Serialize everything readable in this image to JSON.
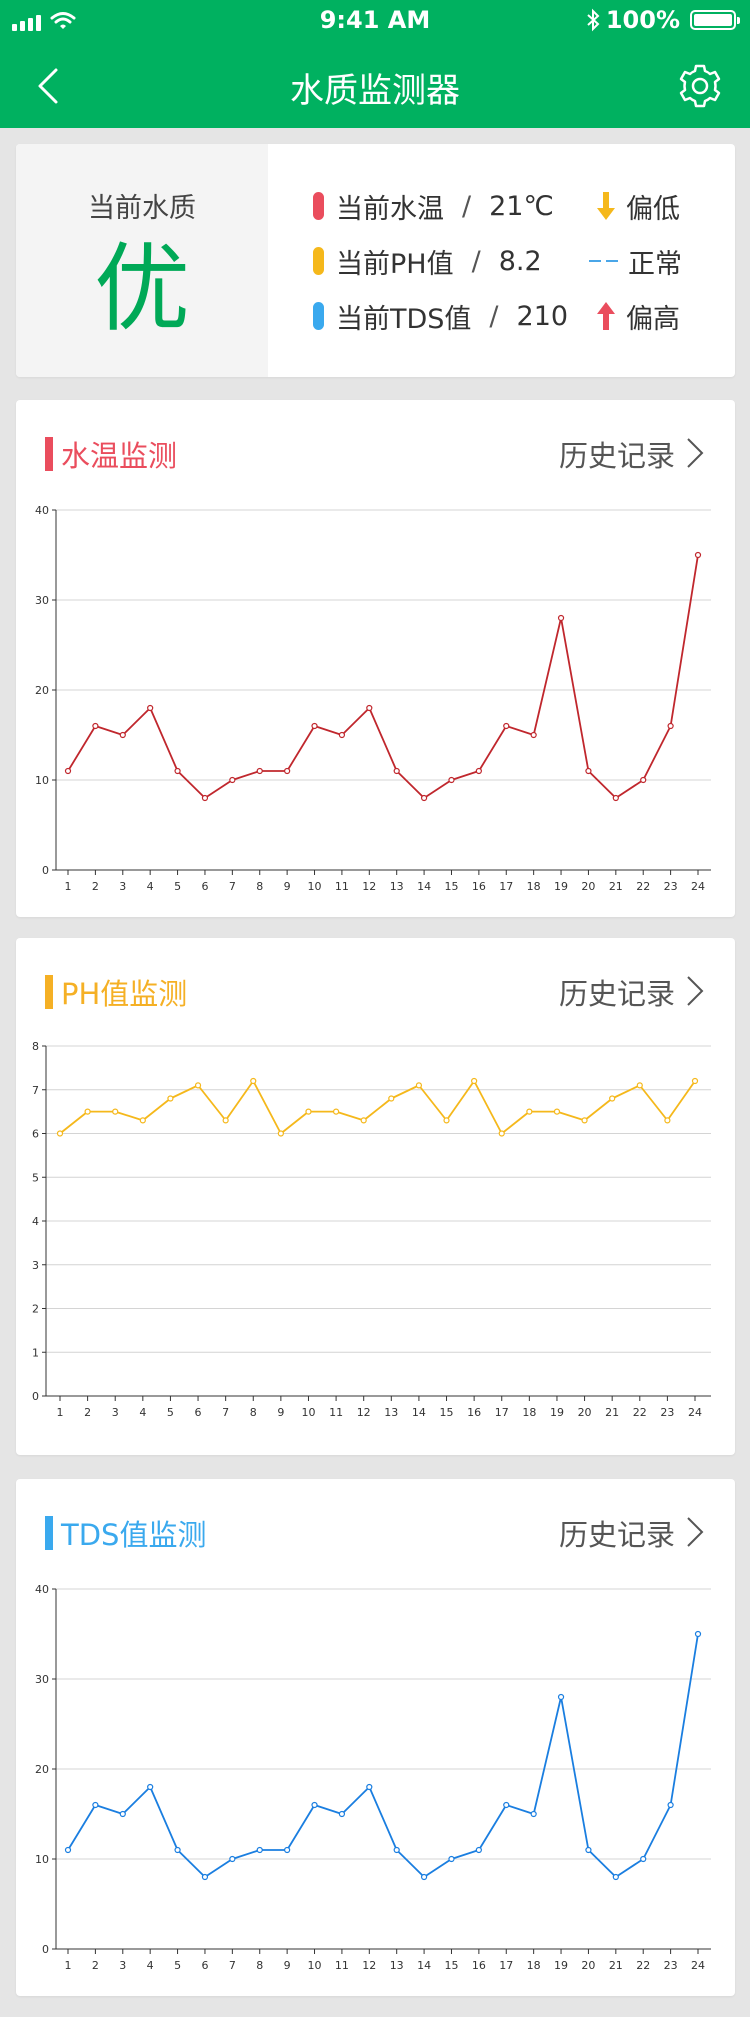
{
  "status_bar": {
    "time": "9:41 AM",
    "battery": "100%",
    "battery_level": 1.0
  },
  "header": {
    "title": "水质监测器"
  },
  "summary": {
    "label": "当前水质",
    "grade": "优",
    "metrics": [
      {
        "label": "当前水温",
        "sep": "/",
        "value": "21℃",
        "color": "#ea4d5d"
      },
      {
        "label": "当前PH值",
        "sep": "/",
        "value": "8.2",
        "color": "#f5b81b"
      },
      {
        "label": "当前TDS值",
        "sep": "/",
        "value": "210",
        "color": "#3aa9ee"
      }
    ],
    "legend": [
      {
        "label": "偏低",
        "color": "#f5b81b"
      },
      {
        "label": "正常",
        "color": "#4aa6e8"
      },
      {
        "label": "偏高",
        "color": "#ea4d5d"
      }
    ]
  },
  "sections": [
    {
      "title": "水温监测",
      "history_label": "历史记录",
      "color": "#ea4d5d"
    },
    {
      "title": "PH值监测",
      "history_label": "历史记录",
      "color": "#f5b025"
    },
    {
      "title": "TDS值监测",
      "history_label": "历史记录",
      "color": "#3aa9ee"
    }
  ],
  "chart_data": [
    {
      "type": "line",
      "x": [
        1,
        2,
        3,
        4,
        5,
        6,
        7,
        8,
        9,
        10,
        11,
        12,
        13,
        14,
        15,
        16,
        17,
        18,
        19,
        20,
        21,
        22,
        23,
        24
      ],
      "series": [
        {
          "values": [
            11,
            16,
            15,
            18,
            11,
            8,
            10,
            11,
            11,
            16,
            15,
            18,
            11,
            8,
            10,
            11,
            16,
            15,
            28,
            11,
            8,
            10,
            16,
            35
          ],
          "color": "#c0272d"
        }
      ],
      "ylim": [
        0,
        40
      ],
      "yticks": [
        0,
        10,
        20,
        30,
        40
      ],
      "grid": true
    },
    {
      "type": "line",
      "x": [
        1,
        2,
        3,
        4,
        5,
        6,
        7,
        8,
        9,
        10,
        11,
        12,
        13,
        14,
        15,
        16,
        17,
        18,
        19,
        20,
        21,
        22,
        23,
        24
      ],
      "series": [
        {
          "values": [
            6.0,
            6.5,
            6.5,
            6.3,
            6.8,
            7.1,
            6.3,
            7.2,
            6.0,
            6.5,
            6.5,
            6.3,
            6.8,
            7.1,
            6.3,
            7.2,
            6.0,
            6.5,
            6.5,
            6.3,
            6.8,
            7.1,
            6.3,
            7.2
          ],
          "color": "#f5b81b"
        }
      ],
      "ylim": [
        0,
        8
      ],
      "yticks": [
        0,
        1,
        2,
        3,
        4,
        5,
        6,
        7,
        8
      ],
      "grid": true
    },
    {
      "type": "line",
      "x": [
        1,
        2,
        3,
        4,
        5,
        6,
        7,
        8,
        9,
        10,
        11,
        12,
        13,
        14,
        15,
        16,
        17,
        18,
        19,
        20,
        21,
        22,
        23,
        24
      ],
      "series": [
        {
          "values": [
            11,
            16,
            15,
            18,
            11,
            8,
            10,
            11,
            11,
            16,
            15,
            18,
            11,
            8,
            10,
            11,
            16,
            15,
            28,
            11,
            8,
            10,
            16,
            35
          ],
          "color": "#1a7ee0"
        }
      ],
      "ylim": [
        0,
        40
      ],
      "yticks": [
        0,
        10,
        20,
        30,
        40
      ],
      "grid": true
    }
  ]
}
